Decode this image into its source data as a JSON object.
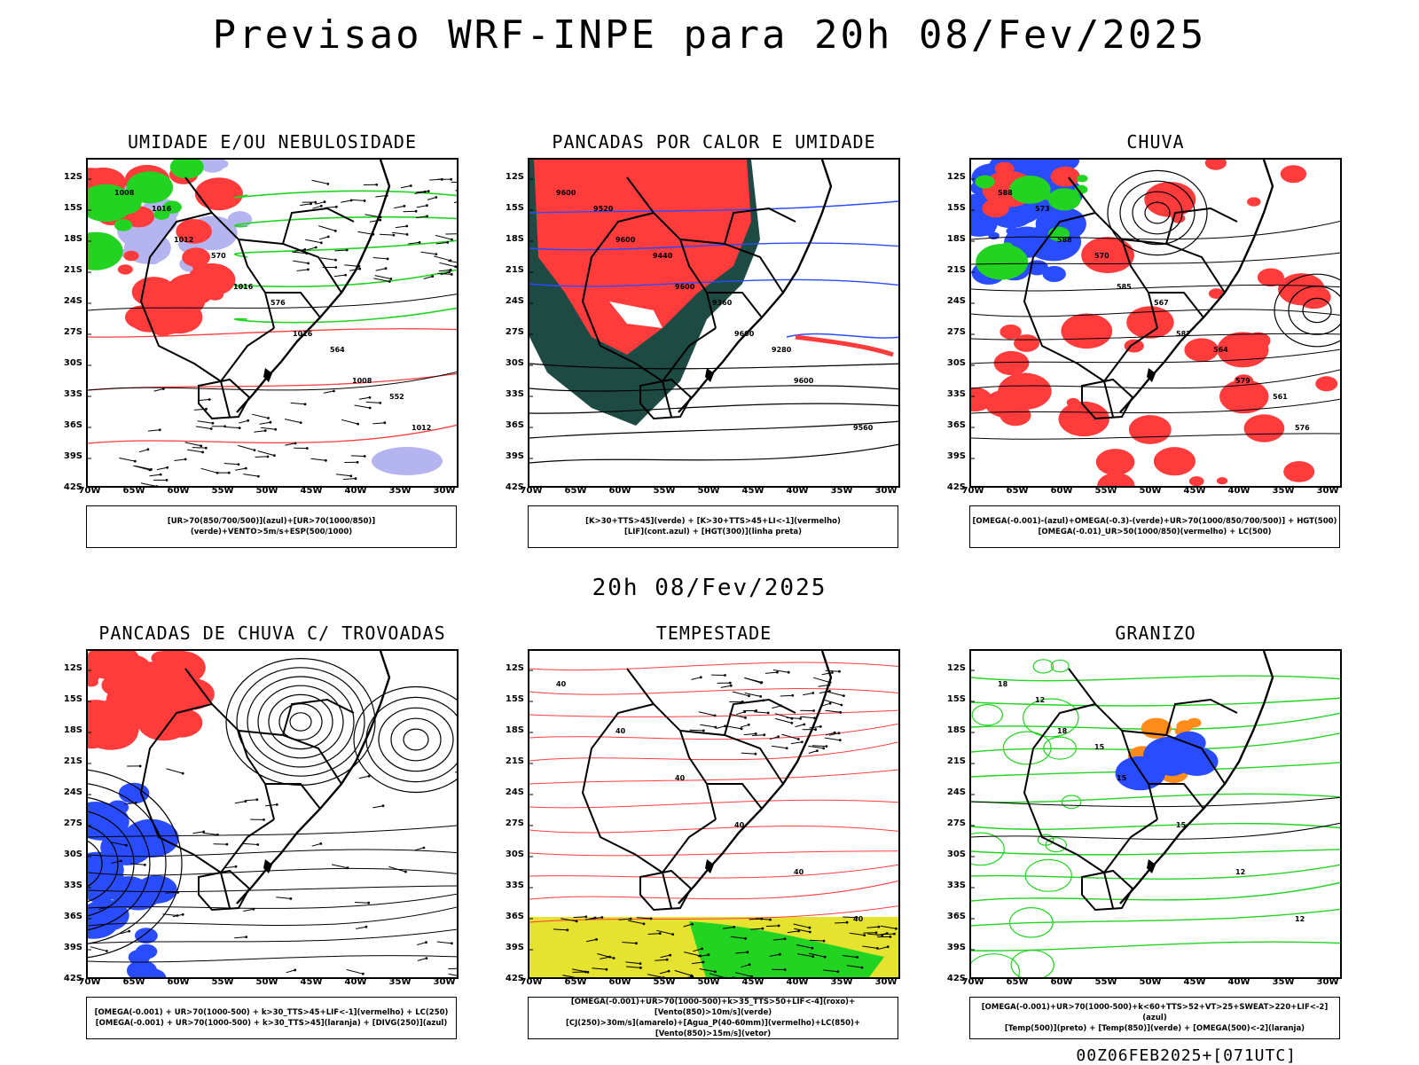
{
  "header": {
    "main_title": "Previsao WRF-INPE  para 20h 08/Fev/2025",
    "sub_title": "20h 08/Fev/2025"
  },
  "axes": {
    "lat_ticks": [
      "12S",
      "15S",
      "18S",
      "21S",
      "24S",
      "27S",
      "30S",
      "33S",
      "36S",
      "39S",
      "42S"
    ],
    "lon_ticks": [
      "70W",
      "65W",
      "60W",
      "55W",
      "50W",
      "45W",
      "40W",
      "35W",
      "30W"
    ]
  },
  "panels": [
    {
      "id": "umidade",
      "title": "UMIDADE E/OU NEBULOSIDADE",
      "legend": [
        "[UR>70(850/700/500)](azul)+[UR>70(1000/850)](verde)+VENTO>5m/s+ESP(500/1000)"
      ],
      "contour_labels": [
        "1008",
        "1012",
        "1016",
        "1016",
        "1008",
        "1012",
        "1016",
        "570",
        "576",
        "564",
        "552"
      ]
    },
    {
      "id": "pancadas",
      "title": "PANCADAS POR CALOR E UMIDADE",
      "legend": [
        "[K>30+TTS>45](verde) + [K>30+TTS>45+LI<-1](vermelho)",
        "[LIF](cont.azul) + [HGT(300)](linha preta)"
      ],
      "contour_labels": [
        "9600",
        "9600",
        "9600",
        "9600",
        "9600",
        "9560",
        "9520",
        "9440",
        "9360",
        "9280"
      ]
    },
    {
      "id": "chuva",
      "title": "CHUVA",
      "legend": [
        "[OMEGA(-0.001)-(azul)+OMEGA(-0.3)-(verde)+UR>70(1000/850/700/500)] + HGT(500)",
        "[OMEGA(-0.01)_UR>50(1000/850)(vermelho) + LC(500)"
      ],
      "contour_labels": [
        "588",
        "588",
        "585",
        "582",
        "579",
        "576",
        "573",
        "570",
        "567",
        "564",
        "561"
      ]
    },
    {
      "id": "trovoadas",
      "title": "PANCADAS DE CHUVA C/ TROVOADAS",
      "legend": [
        "[OMEGA(-0.001) + UR>70(1000-500) + k>30_TTS>45+LIF<-1](vermelho) + LC(250)",
        "[OMEGA(-0.001) + UR>70(1000-500) + k>30_TTS>45](laranja) + [DIVG(250)](azul)"
      ],
      "contour_labels": []
    },
    {
      "id": "tempestade",
      "title": "TEMPESTADE",
      "legend": [
        "[OMEGA(-0.001)+UR>70(1000-500)+k>35_TTS>50+LIF<-4](roxo)+[Vento(850)>10m/s](verde)",
        "[CJ(250)>30m/s](amarelo)+[Agua_P(40-60mm)](vermelho)+LC(850)+[Vento(850)>15m/s](vetor)"
      ],
      "contour_labels": [
        "40",
        "40",
        "40",
        "40",
        "40",
        "40"
      ]
    },
    {
      "id": "granizo",
      "title": "GRANIZO",
      "legend": [
        "[OMEGA(-0.001)+UR>70(1000-500)+k<60+TTS>52+VT>25+SWEAT>220+LIF<-2](azul)",
        "[Temp(500)](preto) + [Temp(850)](verde) + [OMEGA(500)<-2](laranja)"
      ],
      "contour_labels": [
        "18",
        "18",
        "15",
        "15",
        "12",
        "12",
        "12",
        "15"
      ]
    }
  ],
  "footer": "00Z06FEB2025+[071UTC]",
  "colors": {
    "red": "#ff3b3b",
    "green": "#22d322",
    "blue": "#2a4cff",
    "lavender": "#b4b4f0",
    "dark_teal": "#1e4a44",
    "yellow": "#e6e230",
    "orange": "#ff8c1a",
    "purple": "#c020c0"
  }
}
